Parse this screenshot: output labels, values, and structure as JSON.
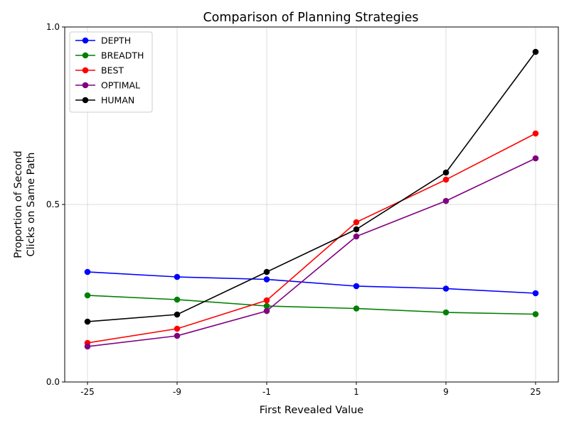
{
  "chart_data": {
    "type": "line",
    "title": "Comparison of Planning Strategies",
    "xlabel": "First Revealed Value",
    "ylabel_lines": [
      "Proportion of Second",
      "Clicks on Same Path"
    ],
    "categories": [
      "-25",
      "-9",
      "-1",
      "1",
      "9",
      "25"
    ],
    "ylim": [
      0.0,
      1.0
    ],
    "yticks": [
      "0.0",
      "0.5",
      "1.0"
    ],
    "y_tick_values": [
      0.0,
      0.5,
      1.0
    ],
    "grid": true,
    "legend_position": "top-left",
    "series": [
      {
        "name": "DEPTH",
        "color": "#0000ff",
        "values": [
          0.31,
          0.296,
          0.289,
          0.27,
          0.263,
          0.25
        ]
      },
      {
        "name": "BREADTH",
        "color": "#008000",
        "values": [
          0.244,
          0.232,
          0.214,
          0.207,
          0.196,
          0.191
        ]
      },
      {
        "name": "BEST",
        "color": "#ff0000",
        "values": [
          0.11,
          0.15,
          0.23,
          0.45,
          0.57,
          0.7
        ]
      },
      {
        "name": "OPTIMAL",
        "color": "#800080",
        "values": [
          0.1,
          0.13,
          0.2,
          0.41,
          0.51,
          0.63
        ]
      },
      {
        "name": "HUMAN",
        "color": "#000000",
        "values": [
          0.17,
          0.19,
          0.31,
          0.43,
          0.59,
          0.93
        ]
      }
    ]
  }
}
